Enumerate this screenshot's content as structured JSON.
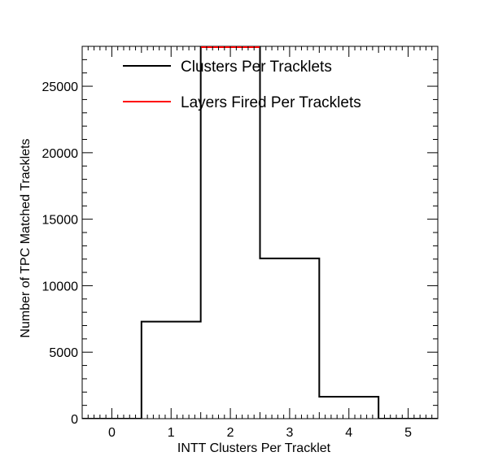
{
  "chart_data": {
    "type": "histogram",
    "xlabel": "INTT Clusters Per Tracklet",
    "ylabel": "Number of TPC Matched Tracklets",
    "xlim": [
      -0.5,
      5.5
    ],
    "ylim": [
      0,
      28000
    ],
    "x_ticks": [
      "0",
      "1",
      "2",
      "3",
      "4",
      "5"
    ],
    "y_ticks": [
      "0",
      "5000",
      "10000",
      "15000",
      "20000",
      "25000"
    ],
    "grid": false,
    "legend_position": "top",
    "series": [
      {
        "name": "Clusters Per Tracklets",
        "color": "#000000",
        "bins": [
          -0.5,
          0.5,
          1.5,
          2.5,
          3.5,
          4.5,
          5.5
        ],
        "values": [
          0,
          7300,
          30500,
          12050,
          1650,
          0
        ]
      },
      {
        "name": "Layers Fired Per Tracklets",
        "color": "#ff0000",
        "bins": [
          -0.5,
          0.5,
          1.5,
          2.5,
          3.5,
          4.5,
          5.5
        ],
        "values": [
          0,
          0,
          28000,
          0,
          0,
          0
        ]
      }
    ]
  }
}
